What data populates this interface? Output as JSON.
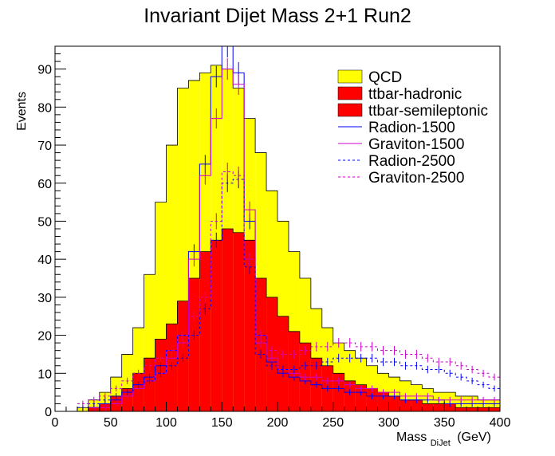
{
  "chart_data": {
    "type": "histogram",
    "title": "Invariant Dijet Mass 2+1 Run2",
    "xlabel": "Mass",
    "xlabel_sub": "DiJet",
    "xlabel_unit": "(GeV)",
    "ylabel": "Events",
    "xlim": [
      0,
      400
    ],
    "ylim": [
      0,
      96
    ],
    "bin_width": 10,
    "bin_start": 20,
    "x_ticks": [
      0,
      50,
      100,
      150,
      200,
      250,
      300,
      350,
      400
    ],
    "y_ticks": [
      0,
      10,
      20,
      30,
      40,
      50,
      60,
      70,
      80,
      90
    ],
    "legend": [
      {
        "label": "QCD",
        "style": "fill",
        "color": "#ffff00"
      },
      {
        "label": "ttbar-hadronic",
        "style": "fill",
        "color": "#ff0000"
      },
      {
        "label": "ttbar-semileptonic",
        "style": "fill",
        "color": "#ff0000"
      },
      {
        "label": "Radion-1500",
        "style": "solid",
        "color": "#0000ff"
      },
      {
        "label": "Graviton-1500",
        "style": "solid",
        "color": "#cc00cc"
      },
      {
        "label": "Radion-2500",
        "style": "dashed",
        "color": "#0000ff"
      },
      {
        "label": "Graviton-2500",
        "style": "dashed",
        "color": "#cc00cc"
      }
    ],
    "series": [
      {
        "name": "QCD",
        "kind": "stack-total",
        "color": "#ffff00",
        "values": [
          1,
          3,
          5,
          9,
          15,
          22,
          36,
          55,
          70,
          85,
          87,
          89,
          91,
          90,
          85,
          77,
          68,
          58,
          50,
          42,
          35,
          27,
          22,
          18,
          16,
          14,
          12,
          10,
          9,
          8,
          7,
          6,
          5,
          5,
          4,
          4,
          3,
          3
        ]
      },
      {
        "name": "ttbar",
        "kind": "stack-part",
        "color": "#ff0000",
        "values": [
          0,
          1,
          2,
          4,
          6,
          10,
          14,
          19,
          23,
          29,
          35,
          42,
          45,
          48,
          47,
          45,
          35,
          30,
          25,
          21,
          18,
          14,
          12,
          10,
          8,
          7,
          6,
          5,
          4,
          3,
          3,
          2,
          2,
          2,
          1,
          1,
          1,
          1
        ]
      },
      {
        "name": "Radion-1500",
        "kind": "step",
        "style": "solid",
        "color": "#0000ff",
        "values": [
          0,
          1,
          2,
          3,
          5,
          7,
          9,
          12,
          16,
          20,
          42,
          65,
          88,
          96,
          89,
          50,
          20,
          13,
          10,
          9,
          8,
          7,
          6,
          6,
          5,
          5,
          4,
          4,
          4,
          3,
          3,
          3,
          3,
          2,
          2,
          2,
          2,
          2
        ]
      },
      {
        "name": "Graviton-1500",
        "kind": "step",
        "style": "solid",
        "color": "#cc00cc",
        "values": [
          0,
          1,
          1,
          2,
          4,
          6,
          8,
          10,
          14,
          18,
          40,
          62,
          77,
          90,
          86,
          53,
          18,
          14,
          11,
          10,
          9,
          9,
          8,
          8,
          7,
          6,
          6,
          5,
          5,
          4,
          4,
          4,
          3,
          3,
          3,
          3,
          3,
          3
        ]
      },
      {
        "name": "Radion-2500",
        "kind": "step",
        "style": "dashed",
        "color": "#0000ff",
        "values": [
          1,
          2,
          3,
          4,
          5,
          7,
          8,
          10,
          12,
          14,
          20,
          27,
          45,
          60,
          61,
          38,
          15,
          12,
          11,
          11,
          12,
          12,
          13,
          14,
          14,
          14,
          14,
          13,
          13,
          12,
          12,
          11,
          11,
          10,
          9,
          8,
          7,
          6
        ]
      },
      {
        "name": "Graviton-2500",
        "kind": "step",
        "style": "dashed",
        "color": "#cc00cc",
        "values": [
          2,
          3,
          4,
          6,
          8,
          10,
          12,
          14,
          16,
          20,
          25,
          30,
          50,
          63,
          62,
          40,
          20,
          16,
          15,
          15,
          16,
          17,
          17,
          18,
          18,
          17,
          17,
          16,
          16,
          15,
          15,
          14,
          13,
          13,
          12,
          11,
          10,
          9
        ]
      }
    ]
  }
}
